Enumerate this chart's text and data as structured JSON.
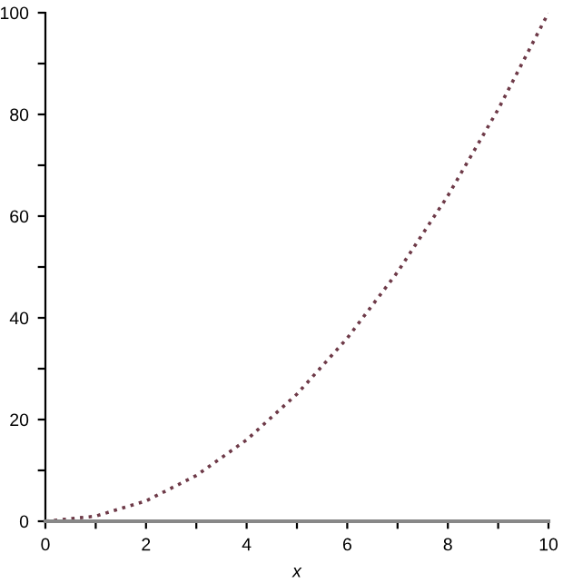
{
  "chart_data": {
    "type": "line",
    "xlabel": "x",
    "x": [
      0,
      1,
      2,
      3,
      4,
      5,
      6,
      7,
      8,
      9,
      10
    ],
    "series": [
      {
        "color": "#6e3a48",
        "values": [
          0,
          1,
          4,
          9,
          16,
          25,
          36,
          49,
          64,
          81,
          100
        ]
      }
    ],
    "xlim": [
      0,
      10
    ],
    "ylim": [
      0,
      100
    ],
    "xticks": [
      0,
      {
        "value": 1,
        "label": null
      },
      2,
      {
        "value": 3,
        "label": null
      },
      4,
      {
        "value": 5,
        "label": null
      },
      6,
      {
        "value": 7,
        "label": null
      },
      8,
      {
        "value": 9,
        "label": null
      },
      10
    ],
    "yticks": [
      0,
      {
        "value": 10,
        "label": null
      },
      20,
      {
        "value": 30,
        "label": null
      },
      40,
      {
        "value": 50,
        "label": null
      },
      60,
      {
        "value": 70,
        "label": null
      },
      80,
      {
        "value": 90,
        "label": null
      },
      100
    ],
    "line_style": "dotted",
    "grid": false,
    "legend": false
  }
}
